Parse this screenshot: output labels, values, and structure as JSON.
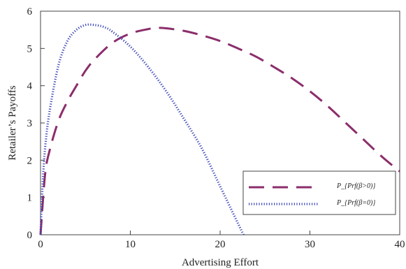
{
  "chart_data": {
    "type": "line",
    "xlabel": "Advertising Effort",
    "ylabel": "Retailer’s Payoffs",
    "xlim": [
      0,
      40
    ],
    "ylim": [
      0,
      6
    ],
    "x_ticks": [
      0,
      10,
      20,
      30,
      40
    ],
    "y_ticks": [
      0,
      1,
      2,
      3,
      4,
      5,
      6
    ],
    "grid": false,
    "legend_position": "bottom-right",
    "series": [
      {
        "name": "P_{Prf(β>0)}",
        "style": "dashed",
        "color": "#8b2e6b",
        "x": [
          0,
          0.5,
          1,
          2,
          3,
          4,
          5,
          6,
          8,
          10,
          12,
          13,
          14,
          16,
          18,
          20,
          22,
          24,
          26,
          28,
          30,
          32,
          34,
          36,
          38,
          40
        ],
        "y": [
          0,
          1.6,
          2.25,
          3.06,
          3.58,
          4.0,
          4.4,
          4.7,
          5.15,
          5.4,
          5.52,
          5.55,
          5.54,
          5.47,
          5.35,
          5.2,
          5.0,
          4.78,
          4.5,
          4.2,
          3.85,
          3.45,
          3.0,
          2.55,
          2.1,
          1.7
        ]
      },
      {
        "name": "P_{Prf(β=0)}",
        "style": "dotted",
        "color": "#3b45b5",
        "x": [
          0,
          0.2,
          0.5,
          1,
          2,
          3,
          4,
          5,
          6,
          7,
          8,
          10,
          12,
          14,
          16,
          18,
          20,
          21,
          22,
          22.6
        ],
        "y": [
          0,
          1.2,
          2.3,
          3.3,
          4.55,
          5.2,
          5.5,
          5.63,
          5.63,
          5.58,
          5.45,
          5.05,
          4.5,
          3.85,
          3.1,
          2.3,
          1.3,
          0.8,
          0.3,
          0
        ]
      }
    ]
  }
}
